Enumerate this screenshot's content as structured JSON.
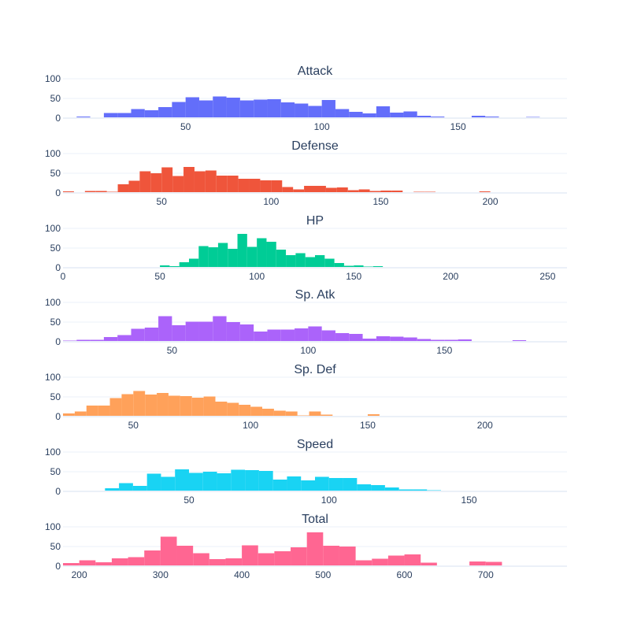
{
  "chart_data": [
    {
      "type": "bar",
      "title": "Attack",
      "color": "#636efa",
      "xlim": [
        5,
        190
      ],
      "ylim": [
        0,
        100
      ],
      "bin_start": 5,
      "bin_size": 5,
      "values": [
        1,
        4,
        1,
        13,
        13,
        23,
        20,
        28,
        41,
        53,
        45,
        55,
        52,
        45,
        47,
        48,
        40,
        37,
        31,
        46,
        23,
        16,
        12,
        30,
        14,
        17,
        6,
        4,
        1,
        2,
        6,
        4,
        1,
        0,
        3,
        1,
        0
      ],
      "x_ticks": [
        50,
        100,
        150
      ],
      "y_ticks": [
        0,
        50,
        100
      ]
    },
    {
      "type": "bar",
      "title": "Defense",
      "color": "#ef553b",
      "xlim": [
        5,
        235
      ],
      "ylim": [
        0,
        100
      ],
      "bin_start": 5,
      "bin_size": 5,
      "values": [
        4,
        2,
        5,
        5,
        3,
        22,
        31,
        55,
        50,
        65,
        43,
        66,
        55,
        57,
        44,
        44,
        36,
        36,
        32,
        32,
        15,
        9,
        18,
        18,
        13,
        14,
        7,
        9,
        5,
        6,
        6,
        2,
        3,
        3,
        0,
        1,
        0,
        0,
        4,
        0,
        0,
        0,
        0,
        0,
        1,
        0
      ],
      "x_ticks": [
        50,
        100,
        150,
        200
      ],
      "y_ticks": [
        0,
        50,
        100
      ]
    },
    {
      "type": "bar",
      "title": "HP",
      "color": "#00cc96",
      "xlim": [
        0,
        260
      ],
      "ylim": [
        0,
        100
      ],
      "bin_start": 0,
      "bin_size": 5,
      "values": [
        0,
        0,
        0,
        0,
        0,
        0,
        0,
        0,
        0,
        0,
        6,
        4,
        14,
        23,
        55,
        52,
        63,
        48,
        86,
        53,
        75,
        66,
        46,
        32,
        37,
        27,
        32,
        23,
        12,
        5,
        6,
        3,
        4,
        1,
        1,
        1,
        1,
        0,
        0,
        0,
        1,
        0,
        0,
        0,
        0,
        0,
        0,
        0,
        0,
        0,
        0,
        0
      ],
      "x_ticks": [
        0,
        50,
        100,
        150,
        200,
        250
      ],
      "y_ticks": [
        0,
        50,
        100
      ]
    },
    {
      "type": "bar",
      "title": "Sp. Atk",
      "color": "#ab63fa",
      "xlim": [
        10,
        195
      ],
      "ylim": [
        0,
        100
      ],
      "bin_start": 10,
      "bin_size": 5,
      "values": [
        3,
        5,
        5,
        12,
        17,
        33,
        36,
        65,
        42,
        51,
        51,
        65,
        50,
        44,
        26,
        31,
        31,
        34,
        39,
        29,
        22,
        20,
        8,
        14,
        13,
        11,
        7,
        5,
        5,
        6,
        0,
        0,
        2,
        4,
        1,
        2,
        0
      ],
      "x_ticks": [
        50,
        100,
        150
      ],
      "y_ticks": [
        0,
        50,
        100
      ]
    },
    {
      "type": "bar",
      "title": "Sp. Def",
      "color": "#ffa15a",
      "xlim": [
        20,
        235
      ],
      "ylim": [
        0,
        100
      ],
      "bin_start": 20,
      "bin_size": 5,
      "values": [
        8,
        13,
        28,
        28,
        47,
        57,
        65,
        56,
        60,
        53,
        52,
        48,
        51,
        38,
        35,
        30,
        25,
        20,
        15,
        13,
        3,
        13,
        5,
        2,
        2,
        0,
        6,
        0,
        0,
        0,
        0,
        0,
        0,
        0,
        0,
        0,
        0,
        0,
        0,
        0,
        0,
        0,
        0
      ],
      "x_ticks": [
        50,
        100,
        150,
        200
      ],
      "y_ticks": [
        0,
        50,
        100
      ]
    },
    {
      "type": "bar",
      "title": "Speed",
      "color": "#19d3f3",
      "xlim": [
        5,
        185
      ],
      "ylim": [
        0,
        100
      ],
      "bin_start": 5,
      "bin_size": 5,
      "values": [
        1,
        2,
        1,
        8,
        21,
        14,
        45,
        37,
        56,
        47,
        50,
        46,
        55,
        54,
        52,
        30,
        38,
        28,
        37,
        34,
        34,
        18,
        16,
        10,
        5,
        5,
        3,
        2,
        0,
        0,
        2,
        1,
        0,
        0,
        0,
        0
      ],
      "x_ticks": [
        50,
        100,
        150
      ],
      "y_ticks": [
        0,
        50,
        100
      ]
    },
    {
      "type": "bar",
      "title": "Total",
      "color": "#ff6692",
      "xlim": [
        180,
        800
      ],
      "ylim": [
        0,
        100
      ],
      "bin_start": 180,
      "bin_size": 20,
      "values": [
        8,
        15,
        10,
        20,
        23,
        40,
        75,
        52,
        33,
        18,
        20,
        53,
        33,
        38,
        48,
        86,
        52,
        50,
        15,
        19,
        27,
        30,
        9,
        1,
        1,
        12,
        11,
        0,
        0,
        1,
        1,
        0
      ],
      "x_ticks": [
        200,
        300,
        400,
        500,
        600,
        700
      ],
      "y_ticks": [
        0,
        50,
        100
      ]
    }
  ]
}
